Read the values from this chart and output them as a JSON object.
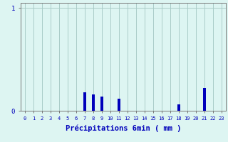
{
  "hours": [
    0,
    1,
    2,
    3,
    4,
    5,
    6,
    7,
    8,
    9,
    10,
    11,
    12,
    13,
    14,
    15,
    16,
    17,
    18,
    19,
    20,
    21,
    22,
    23
  ],
  "values": [
    0,
    0,
    0,
    0,
    0,
    0,
    0,
    0.18,
    0.16,
    0.14,
    0,
    0.12,
    0,
    0,
    0,
    0,
    0,
    0,
    0.06,
    0,
    0,
    0.22,
    0,
    0
  ],
  "bar_color": "#0000bb",
  "bg_color": "#ddf5f2",
  "grid_color": "#aaccc8",
  "axis_color": "#777777",
  "text_color": "#0000bb",
  "xlabel": "Précipitations 6min ( mm )",
  "ylim": [
    0,
    1.05
  ],
  "yticks": [
    0,
    1
  ],
  "xlim": [
    -0.5,
    23.5
  ]
}
